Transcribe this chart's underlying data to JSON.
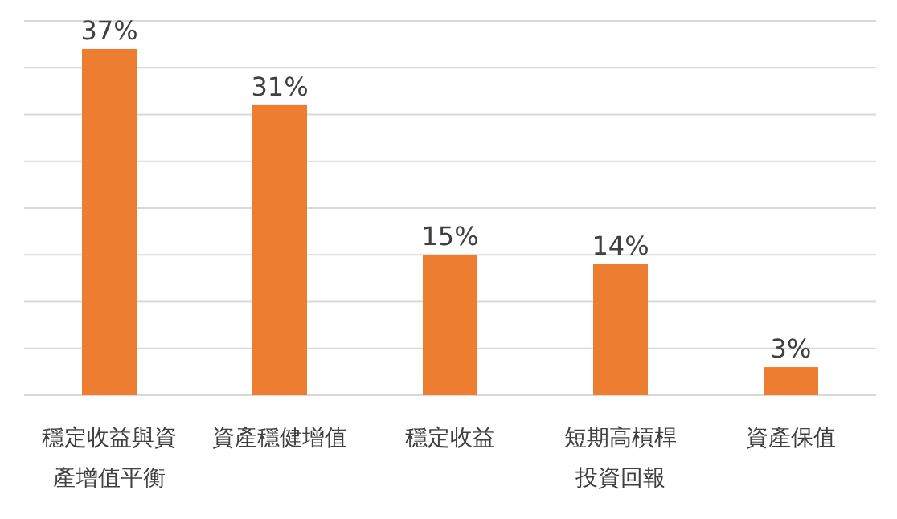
{
  "chart_data": {
    "type": "bar",
    "categories": [
      "穩定收益與資產增值平衡",
      "資產穩健增值",
      "穩定收益",
      "短期高槓桿投資回報",
      "資產保值"
    ],
    "values": [
      37,
      31,
      15,
      14,
      3
    ],
    "value_labels": [
      "37%",
      "31%",
      "15%",
      "14%",
      "3%"
    ],
    "color": "#ed7d31",
    "ylim": [
      0,
      40
    ],
    "yticks": [
      {
        "value": 0,
        "label": null
      },
      {
        "value": 5,
        "label": null
      },
      {
        "value": 10,
        "label": null
      },
      {
        "value": 15,
        "label": null
      },
      {
        "value": 20,
        "label": null
      },
      {
        "value": 25,
        "label": null
      },
      {
        "value": 30,
        "label": null
      },
      {
        "value": 35,
        "label": null
      },
      {
        "value": 40,
        "label": null
      }
    ],
    "grid": "y",
    "tick_labels": "x"
  }
}
